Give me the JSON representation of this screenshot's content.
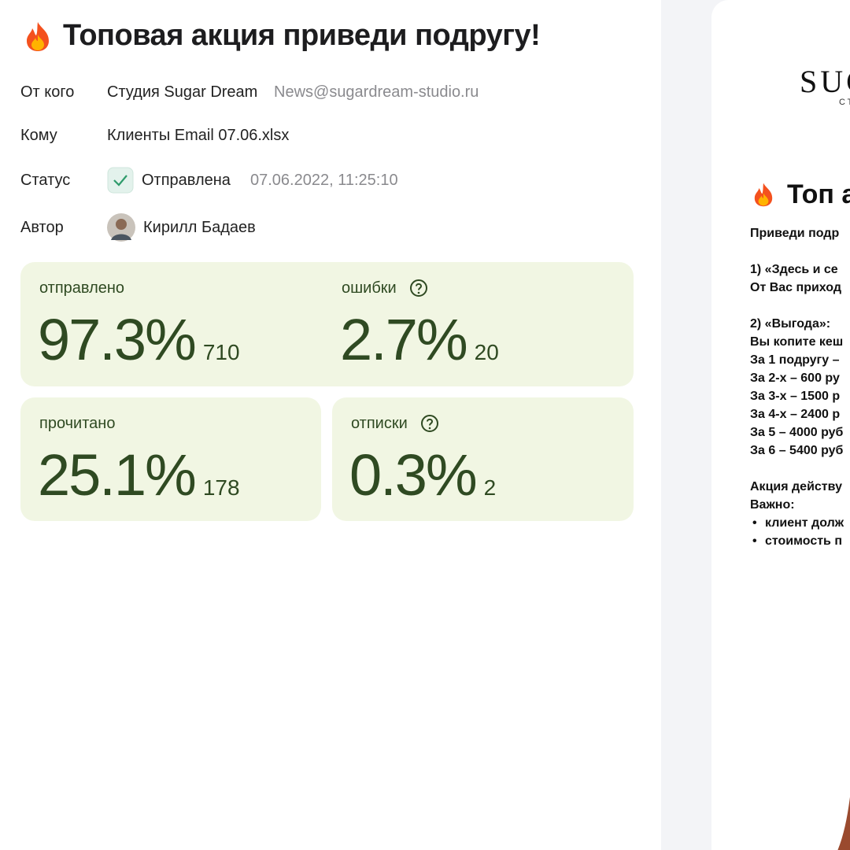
{
  "header": {
    "title": "Топовая акция приведи подругу!"
  },
  "meta": [
    {
      "label": "От кого",
      "value": "Студия Sugar Dream",
      "extra": "News@sugardream-studio.ru"
    },
    {
      "label": "Кому",
      "value": "Клиенты Email 07.06.xlsx"
    },
    {
      "label": "Статус",
      "value": "Отправлена",
      "extra": "07.06.2022, 11:25:10"
    },
    {
      "label": "Автор",
      "value": "Кирилл Бадаев"
    }
  ],
  "stats": [
    {
      "label": "отправлено",
      "percent": "97.3%",
      "count": "710"
    },
    {
      "label": "ошибки",
      "percent": "2.7%",
      "count": "20"
    },
    {
      "label": "прочитано",
      "percent": "25.1%",
      "count": "178"
    },
    {
      "label": "отписки",
      "percent": "0.3%",
      "count": "2"
    }
  ],
  "preview": {
    "logo": "SUG",
    "logo_sub": "СТ",
    "title": "Топ а",
    "lines": [
      "Приведи подр",
      "1)  «Здесь и се",
      "От Вас приход",
      "2)  «Выгода»:",
      "Вы копите кеш",
      "За 1 подругу –",
      "За 2-х – 600 ру",
      "За 3-х – 1500 р",
      "За 4-х – 2400 р",
      "За 5 – 4000 руб",
      "За 6 – 5400 руб",
      "Акция действу",
      "Важно:"
    ],
    "bullets": [
      "клиент долж",
      "стоимость п"
    ]
  }
}
